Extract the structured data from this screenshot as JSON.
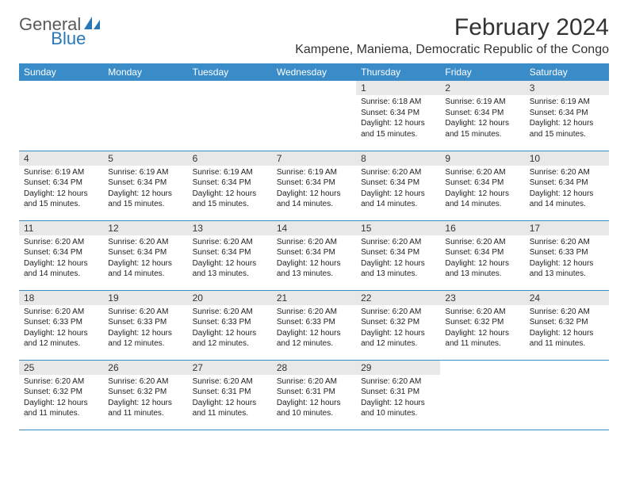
{
  "header": {
    "logo_text_1": "General",
    "logo_text_2": "Blue",
    "title": "February 2024",
    "subtitle": "Kampene, Maniema, Democratic Republic of the Congo"
  },
  "colors": {
    "header_bg": "#3a8cc8",
    "header_text": "#ffffff",
    "daynum_bg": "#e8e8e8",
    "border": "#3a8cc8",
    "logo_gray": "#5a5a5a",
    "logo_blue": "#2878b8"
  },
  "weekdays": [
    "Sunday",
    "Monday",
    "Tuesday",
    "Wednesday",
    "Thursday",
    "Friday",
    "Saturday"
  ],
  "weeks": [
    [
      null,
      null,
      null,
      null,
      {
        "n": "1",
        "sr": "Sunrise: 6:18 AM",
        "ss": "Sunset: 6:34 PM",
        "dl": "Daylight: 12 hours and 15 minutes."
      },
      {
        "n": "2",
        "sr": "Sunrise: 6:19 AM",
        "ss": "Sunset: 6:34 PM",
        "dl": "Daylight: 12 hours and 15 minutes."
      },
      {
        "n": "3",
        "sr": "Sunrise: 6:19 AM",
        "ss": "Sunset: 6:34 PM",
        "dl": "Daylight: 12 hours and 15 minutes."
      }
    ],
    [
      {
        "n": "4",
        "sr": "Sunrise: 6:19 AM",
        "ss": "Sunset: 6:34 PM",
        "dl": "Daylight: 12 hours and 15 minutes."
      },
      {
        "n": "5",
        "sr": "Sunrise: 6:19 AM",
        "ss": "Sunset: 6:34 PM",
        "dl": "Daylight: 12 hours and 15 minutes."
      },
      {
        "n": "6",
        "sr": "Sunrise: 6:19 AM",
        "ss": "Sunset: 6:34 PM",
        "dl": "Daylight: 12 hours and 15 minutes."
      },
      {
        "n": "7",
        "sr": "Sunrise: 6:19 AM",
        "ss": "Sunset: 6:34 PM",
        "dl": "Daylight: 12 hours and 14 minutes."
      },
      {
        "n": "8",
        "sr": "Sunrise: 6:20 AM",
        "ss": "Sunset: 6:34 PM",
        "dl": "Daylight: 12 hours and 14 minutes."
      },
      {
        "n": "9",
        "sr": "Sunrise: 6:20 AM",
        "ss": "Sunset: 6:34 PM",
        "dl": "Daylight: 12 hours and 14 minutes."
      },
      {
        "n": "10",
        "sr": "Sunrise: 6:20 AM",
        "ss": "Sunset: 6:34 PM",
        "dl": "Daylight: 12 hours and 14 minutes."
      }
    ],
    [
      {
        "n": "11",
        "sr": "Sunrise: 6:20 AM",
        "ss": "Sunset: 6:34 PM",
        "dl": "Daylight: 12 hours and 14 minutes."
      },
      {
        "n": "12",
        "sr": "Sunrise: 6:20 AM",
        "ss": "Sunset: 6:34 PM",
        "dl": "Daylight: 12 hours and 14 minutes."
      },
      {
        "n": "13",
        "sr": "Sunrise: 6:20 AM",
        "ss": "Sunset: 6:34 PM",
        "dl": "Daylight: 12 hours and 13 minutes."
      },
      {
        "n": "14",
        "sr": "Sunrise: 6:20 AM",
        "ss": "Sunset: 6:34 PM",
        "dl": "Daylight: 12 hours and 13 minutes."
      },
      {
        "n": "15",
        "sr": "Sunrise: 6:20 AM",
        "ss": "Sunset: 6:34 PM",
        "dl": "Daylight: 12 hours and 13 minutes."
      },
      {
        "n": "16",
        "sr": "Sunrise: 6:20 AM",
        "ss": "Sunset: 6:34 PM",
        "dl": "Daylight: 12 hours and 13 minutes."
      },
      {
        "n": "17",
        "sr": "Sunrise: 6:20 AM",
        "ss": "Sunset: 6:33 PM",
        "dl": "Daylight: 12 hours and 13 minutes."
      }
    ],
    [
      {
        "n": "18",
        "sr": "Sunrise: 6:20 AM",
        "ss": "Sunset: 6:33 PM",
        "dl": "Daylight: 12 hours and 12 minutes."
      },
      {
        "n": "19",
        "sr": "Sunrise: 6:20 AM",
        "ss": "Sunset: 6:33 PM",
        "dl": "Daylight: 12 hours and 12 minutes."
      },
      {
        "n": "20",
        "sr": "Sunrise: 6:20 AM",
        "ss": "Sunset: 6:33 PM",
        "dl": "Daylight: 12 hours and 12 minutes."
      },
      {
        "n": "21",
        "sr": "Sunrise: 6:20 AM",
        "ss": "Sunset: 6:33 PM",
        "dl": "Daylight: 12 hours and 12 minutes."
      },
      {
        "n": "22",
        "sr": "Sunrise: 6:20 AM",
        "ss": "Sunset: 6:32 PM",
        "dl": "Daylight: 12 hours and 12 minutes."
      },
      {
        "n": "23",
        "sr": "Sunrise: 6:20 AM",
        "ss": "Sunset: 6:32 PM",
        "dl": "Daylight: 12 hours and 11 minutes."
      },
      {
        "n": "24",
        "sr": "Sunrise: 6:20 AM",
        "ss": "Sunset: 6:32 PM",
        "dl": "Daylight: 12 hours and 11 minutes."
      }
    ],
    [
      {
        "n": "25",
        "sr": "Sunrise: 6:20 AM",
        "ss": "Sunset: 6:32 PM",
        "dl": "Daylight: 12 hours and 11 minutes."
      },
      {
        "n": "26",
        "sr": "Sunrise: 6:20 AM",
        "ss": "Sunset: 6:32 PM",
        "dl": "Daylight: 12 hours and 11 minutes."
      },
      {
        "n": "27",
        "sr": "Sunrise: 6:20 AM",
        "ss": "Sunset: 6:31 PM",
        "dl": "Daylight: 12 hours and 11 minutes."
      },
      {
        "n": "28",
        "sr": "Sunrise: 6:20 AM",
        "ss": "Sunset: 6:31 PM",
        "dl": "Daylight: 12 hours and 10 minutes."
      },
      {
        "n": "29",
        "sr": "Sunrise: 6:20 AM",
        "ss": "Sunset: 6:31 PM",
        "dl": "Daylight: 12 hours and 10 minutes."
      },
      null,
      null
    ]
  ]
}
